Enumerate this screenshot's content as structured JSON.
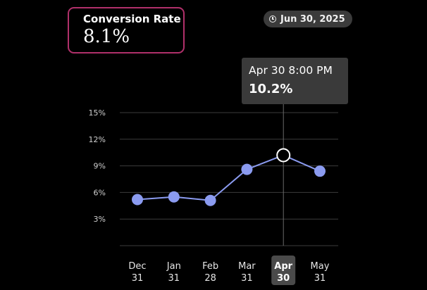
{
  "metric": {
    "title": "Conversion Rate",
    "value": "8.1%",
    "border_color": "#b0306a"
  },
  "date_badge": {
    "icon": "clock-icon",
    "label": "Jun 30, 2025"
  },
  "tooltip": {
    "time": "Apr 30 8:00 PM",
    "value": "10.2%"
  },
  "chart_data": {
    "type": "line",
    "title": "",
    "xlabel": "",
    "ylabel": "",
    "categories": [
      [
        "Dec",
        "31"
      ],
      [
        "Jan",
        "31"
      ],
      [
        "Feb",
        "28"
      ],
      [
        "Mar",
        "31"
      ],
      [
        "Apr",
        "30"
      ],
      [
        "May",
        "31"
      ]
    ],
    "values": [
      5.2,
      5.5,
      5.1,
      8.6,
      10.2,
      8.4
    ],
    "y_ticks": [
      {
        "value": 3,
        "label": "3%"
      },
      {
        "value": 6,
        "label": "6%"
      },
      {
        "value": 9,
        "label": "9%"
      },
      {
        "value": 12,
        "label": "12%"
      },
      {
        "value": 15,
        "label": "15%"
      }
    ],
    "ylim": [
      0,
      15
    ],
    "grid": true,
    "highlight_index": 4,
    "line_color": "#8b9bf0",
    "grid_color": "#3c3c3c",
    "highlight_badge_color": "#4a4a4a"
  }
}
